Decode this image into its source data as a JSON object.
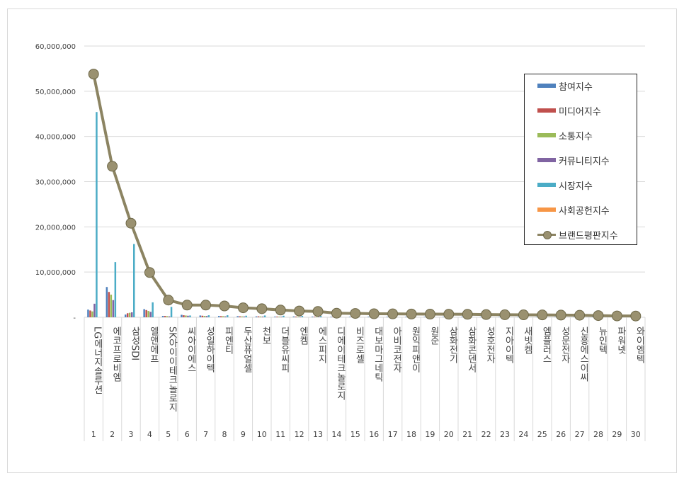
{
  "chart_data": {
    "type": "bar",
    "y_ticks": [
      "-",
      "10,000,000",
      "20,000,000",
      "30,000,000",
      "40,000,000",
      "50,000,000",
      "60,000,000"
    ],
    "ylim": [
      0,
      60000000
    ],
    "grid": true,
    "legend_position": "top-right",
    "categories": [
      "LG에너지솔루션",
      "에코프로비엠",
      "삼성SDI",
      "엘앤에프",
      "SK아이이테크놀로지",
      "씨아이에스",
      "성일하이텍",
      "피엔티",
      "두산퓨얼셀",
      "천보",
      "더블유씨피",
      "엔켐",
      "에스피지",
      "디에이테크놀로지",
      "비즈로셀",
      "대보마그네틱",
      "아비코전자",
      "원익피앤이",
      "원준",
      "삼화전기",
      "삼화콘덴서",
      "성호전자",
      "지아이텍",
      "새빗켐",
      "엠플러스",
      "성문전자",
      "신흥에스이씨",
      "뉴인텍",
      "파워넷",
      "와이엠텍"
    ],
    "ranks": [
      "1",
      "2",
      "3",
      "4",
      "5",
      "6",
      "7",
      "8",
      "9",
      "10",
      "11",
      "12",
      "13",
      "14",
      "15",
      "16",
      "17",
      "18",
      "19",
      "20",
      "21",
      "22",
      "23",
      "24",
      "25",
      "26",
      "27",
      "28",
      "29",
      "30"
    ],
    "series": [
      {
        "name": "참여지수",
        "color": "#4f81bd",
        "kind": "bar",
        "values": [
          1700000,
          6700000,
          600000,
          1800000,
          300000,
          550000,
          400000,
          300000,
          250000,
          200000,
          150000,
          180000,
          150000,
          100000,
          100000,
          120000,
          100000,
          90000,
          90000,
          90000,
          90000,
          80000,
          80000,
          80000,
          80000,
          70000,
          70000,
          60000,
          60000,
          60000
        ]
      },
      {
        "name": "미디어지수",
        "color": "#c0504d",
        "kind": "bar",
        "values": [
          1500000,
          5600000,
          900000,
          1600000,
          300000,
          450000,
          350000,
          250000,
          220000,
          200000,
          150000,
          150000,
          120000,
          90000,
          90000,
          100000,
          90000,
          80000,
          80000,
          80000,
          80000,
          70000,
          70000,
          70000,
          70000,
          60000,
          60000,
          50000,
          50000,
          50000
        ]
      },
      {
        "name": "소통지수",
        "color": "#9bbb59",
        "kind": "bar",
        "values": [
          1300000,
          5000000,
          1000000,
          1400000,
          250000,
          400000,
          300000,
          250000,
          200000,
          180000,
          140000,
          130000,
          110000,
          90000,
          80000,
          90000,
          80000,
          70000,
          70000,
          70000,
          70000,
          60000,
          60000,
          60000,
          60000,
          50000,
          50000,
          50000,
          50000,
          50000
        ]
      },
      {
        "name": "커뮤니티지수",
        "color": "#8064a2",
        "kind": "bar",
        "values": [
          3000000,
          3800000,
          1100000,
          1200000,
          200000,
          350000,
          280000,
          200000,
          180000,
          160000,
          130000,
          120000,
          100000,
          80000,
          80000,
          80000,
          70000,
          60000,
          60000,
          60000,
          60000,
          50000,
          50000,
          50000,
          50000,
          50000,
          50000,
          40000,
          40000,
          40000
        ]
      },
      {
        "name": "시장지수",
        "color": "#4bacc6",
        "kind": "bar",
        "values": [
          45400000,
          12200000,
          16200000,
          3300000,
          2300000,
          400000,
          450000,
          450000,
          350000,
          400000,
          350000,
          300000,
          250000,
          200000,
          200000,
          150000,
          150000,
          150000,
          150000,
          130000,
          130000,
          120000,
          120000,
          110000,
          110000,
          100000,
          100000,
          90000,
          90000,
          90000
        ]
      },
      {
        "name": "사회공헌지수",
        "color": "#f79646",
        "kind": "bar",
        "values": [
          0,
          0,
          0,
          0,
          0,
          0,
          0,
          0,
          0,
          0,
          0,
          0,
          0,
          0,
          0,
          0,
          0,
          0,
          0,
          0,
          0,
          0,
          0,
          0,
          0,
          0,
          0,
          0,
          0,
          0
        ]
      },
      {
        "name": "브랜드평판지수",
        "color": "#8c8462",
        "kind": "line",
        "values": [
          53800000,
          33400000,
          20800000,
          9900000,
          3800000,
          2700000,
          2700000,
          2500000,
          2100000,
          1900000,
          1600000,
          1400000,
          1300000,
          900000,
          850000,
          780000,
          760000,
          720000,
          700000,
          680000,
          660000,
          600000,
          560000,
          540000,
          520000,
          480000,
          450000,
          380000,
          300000,
          280000
        ]
      }
    ]
  }
}
